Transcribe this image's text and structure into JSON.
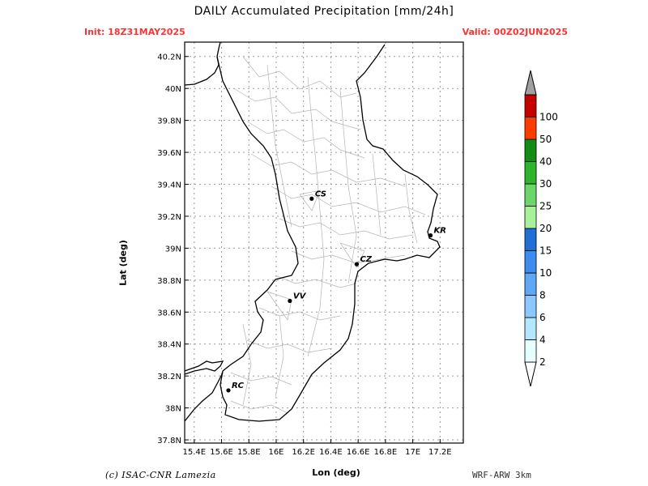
{
  "header": {
    "title": "DAILY Accumulated Precipitation [mm/24h]",
    "init": "Init:  18Z31MAY2025",
    "valid": "Valid:  00Z02JUN2025"
  },
  "axes": {
    "xlabel": "Lon (deg)",
    "ylabel": "Lat (deg)",
    "lon_ticks": [
      "15.4E",
      "15.6E",
      "15.8E",
      "16E",
      "16.2E",
      "16.4E",
      "16.6E",
      "16.8E",
      "17E",
      "17.2E"
    ],
    "lat_ticks": [
      "37.8N",
      "38N",
      "38.2N",
      "38.4N",
      "38.6N",
      "38.8N",
      "39N",
      "39.2N",
      "39.4N",
      "39.6N",
      "39.8N",
      "40N",
      "40.2N"
    ],
    "lon_range": [
      15.33,
      17.37
    ],
    "lat_range": [
      37.78,
      40.29
    ]
  },
  "cities": [
    {
      "code": "CS",
      "lon": 16.26,
      "lat": 39.31
    },
    {
      "code": "KR",
      "lon": 17.13,
      "lat": 39.08
    },
    {
      "code": "CZ",
      "lon": 16.59,
      "lat": 38.9
    },
    {
      "code": "VV",
      "lon": 16.1,
      "lat": 38.67
    },
    {
      "code": "RC",
      "lon": 15.65,
      "lat": 38.11
    }
  ],
  "colorbar": {
    "levels": [
      "2",
      "4",
      "6",
      "8",
      "10",
      "15",
      "20",
      "25",
      "30",
      "40",
      "50",
      "100"
    ],
    "colors": [
      "#e6ffff",
      "#b3e6ff",
      "#8cc8ff",
      "#5fa8f5",
      "#3c8cf0",
      "#1f6fd6",
      "#a8f09a",
      "#6cd66b",
      "#2fb42f",
      "#128c12",
      "#ff3c00",
      "#c40000",
      "#a0a0a0"
    ]
  },
  "footer": {
    "credit": "(c) ISAC-CNR Lamezia",
    "model": "WRF-ARW 3km"
  }
}
